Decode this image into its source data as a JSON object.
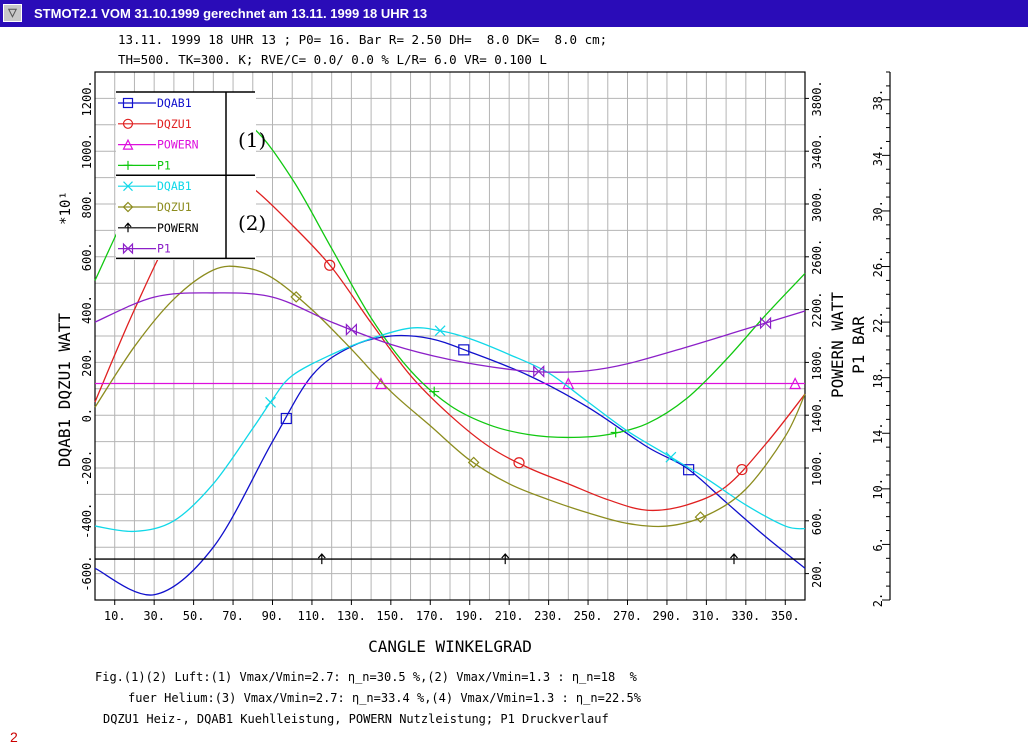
{
  "window": {
    "title": "STMOT2.1 VOM 31.10.1999 gerechnet am 13.11. 1999 18 UHR 13",
    "menu_icon": "system-menu-icon"
  },
  "header": {
    "line1": "13.11. 1999 18 UHR 13 ; P0= 16. Bar R= 2.50 DH=  8.0 DK=  8.0 cm;",
    "line2": "TH=500. TK=300. K; RVE/C= 0.0/ 0.0 % L/R= 6.0 VR= 0.100 L"
  },
  "chart_data": {
    "type": "line",
    "xlabel": "CANGLE WINKELGRAD",
    "x_ticks": [
      "10.",
      "30.",
      "50.",
      "70.",
      "90.",
      "110.",
      "130.",
      "150.",
      "170.",
      "190.",
      "210.",
      "230.",
      "250.",
      "270.",
      "290.",
      "310.",
      "330.",
      "350."
    ],
    "xlim": [
      0,
      360
    ],
    "left_axis": {
      "label": "DQAB1  DQZU1  WATT",
      "multiplier": "*10¹",
      "ylim": [
        -700,
        1300
      ],
      "ticks": [
        "-600.",
        "-400.",
        "-200.",
        "0.",
        "200.",
        "400.",
        "600.",
        "800.",
        "1000.",
        "1200."
      ]
    },
    "mid_axis": {
      "label": "POWERN  WATT",
      "ylim": [
        0,
        4000
      ],
      "ticks": [
        "200.",
        "600.",
        "1000.",
        "1400.",
        "1800.",
        "2200.",
        "2600.",
        "3000.",
        "3400.",
        "3800."
      ]
    },
    "right_axis": {
      "label": "P1  BAR",
      "ylim": [
        2,
        40
      ],
      "ticks": [
        "2.",
        "6.",
        "10.",
        "14.",
        "18.",
        "22.",
        "26.",
        "30.",
        "34.",
        "38."
      ]
    },
    "groups": [
      {
        "label": "(1)",
        "series": [
          0,
          1,
          2,
          3
        ]
      },
      {
        "label": "(2)",
        "series": [
          4,
          5,
          6,
          7
        ]
      }
    ],
    "series": [
      {
        "name": "DQAB1",
        "color": "#1010cc",
        "marker": "square",
        "axis": "left",
        "x": [
          0,
          30,
          60,
          90,
          110,
          130,
          150,
          170,
          190,
          220,
          250,
          280,
          300,
          320,
          340,
          360
        ],
        "y": [
          -580,
          -680,
          -500,
          -100,
          150,
          260,
          300,
          290,
          240,
          150,
          30,
          -120,
          -200,
          -330,
          -460,
          -580
        ],
        "marker_x": [
          97,
          187,
          301
        ]
      },
      {
        "name": "DQZU1",
        "color": "#e02020",
        "marker": "circle",
        "axis": "left",
        "x": [
          0,
          20,
          40,
          60,
          70,
          80,
          100,
          120,
          140,
          160,
          180,
          200,
          220,
          240,
          260,
          280,
          300,
          320,
          340,
          360
        ],
        "y": [
          50,
          400,
          700,
          860,
          880,
          860,
          720,
          560,
          350,
          150,
          0,
          -120,
          -200,
          -260,
          -320,
          -360,
          -340,
          -270,
          -110,
          80
        ],
        "marker_x": [
          119,
          215,
          328
        ]
      },
      {
        "name": "POWERN",
        "color": "#dd10dd",
        "marker": "triangle",
        "axis": "mid",
        "x": [
          0,
          90,
          180,
          270,
          360
        ],
        "y": [
          1640,
          1640,
          1640,
          1640,
          1640
        ],
        "marker_x": [
          145,
          240,
          355
        ]
      },
      {
        "name": "P1",
        "color": "#10c810",
        "marker": "plus",
        "axis": "right",
        "x": [
          0,
          20,
          40,
          60,
          80,
          100,
          120,
          140,
          160,
          180,
          200,
          220,
          240,
          260,
          280,
          300,
          320,
          340,
          360
        ],
        "y": [
          25,
          31,
          35.8,
          37.2,
          36,
          32.3,
          27.3,
          22.3,
          18.5,
          16,
          14.6,
          13.9,
          13.7,
          13.9,
          14.7,
          16.5,
          19.3,
          22.5,
          25.5
        ],
        "marker_x": [
          172,
          264
        ]
      },
      {
        "name": "DQAB1",
        "color": "#10d8e8",
        "marker": "x",
        "axis": "left",
        "x": [
          0,
          20,
          40,
          60,
          80,
          90,
          100,
          120,
          140,
          160,
          175,
          190,
          210,
          230,
          250,
          270,
          290,
          310,
          330,
          350,
          360
        ],
        "y": [
          -420,
          -440,
          -400,
          -260,
          -50,
          60,
          150,
          230,
          290,
          330,
          320,
          290,
          230,
          160,
          50,
          -60,
          -150,
          -240,
          -340,
          -420,
          -430
        ],
        "marker_x": [
          89,
          175,
          292
        ]
      },
      {
        "name": "DQZU1",
        "color": "#8c8c1e",
        "marker": "diamond",
        "axis": "left",
        "x": [
          0,
          20,
          40,
          60,
          75,
          90,
          110,
          130,
          150,
          170,
          190,
          210,
          230,
          250,
          270,
          290,
          310,
          330,
          350,
          360
        ],
        "y": [
          30,
          260,
          440,
          550,
          560,
          520,
          400,
          250,
          90,
          -40,
          -170,
          -260,
          -320,
          -370,
          -410,
          -420,
          -380,
          -280,
          -80,
          80
        ],
        "marker_x": [
          102,
          192,
          307
        ]
      },
      {
        "name": "POWERN",
        "color": "#000000",
        "marker": "arrow",
        "axis": "mid",
        "x": [
          0,
          90,
          180,
          270,
          360
        ],
        "y": [
          310,
          310,
          310,
          310,
          310
        ],
        "marker_x": [
          115,
          208,
          324
        ]
      },
      {
        "name": "P1",
        "color": "#8c20c8",
        "marker": "bowtie",
        "axis": "right",
        "x": [
          0,
          30,
          60,
          90,
          120,
          150,
          180,
          210,
          230,
          250,
          270,
          300,
          330,
          360
        ],
        "y": [
          22,
          23.8,
          24.1,
          23.8,
          22,
          20.4,
          19.3,
          18.6,
          18.4,
          18.5,
          19,
          20.2,
          21.5,
          22.8
        ],
        "marker_x": [
          130,
          225,
          340
        ]
      }
    ]
  },
  "captions": {
    "line1": "Fig.(1)(2) Luft:(1) Vmax/Vmin=2.7: η_n=30.5 %,(2) Vmax/Vmin=1.3 : η_n=18  %",
    "line2": "fuer Helium:(3) Vmax/Vmin=2.7: η_n=33.4 %,(4) Vmax/Vmin=1.3 : η_n=22.5%",
    "line3": "DQZU1 Heiz-, DQAB1 Kuehlleistung, POWERN Nutzleistung; P1 Druckverlauf"
  },
  "page_number": "2"
}
